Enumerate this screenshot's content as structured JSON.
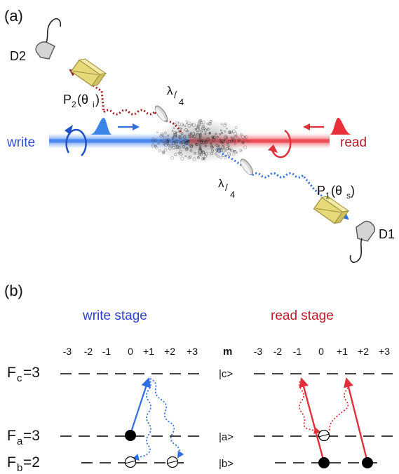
{
  "panel_a": {
    "label": "(a)",
    "write": "write",
    "read": "read",
    "detector1": "D1",
    "detector2": "D2",
    "polarizer1": "P",
    "polarizer1_sub": "1",
    "polarizer1_arg": "(θ",
    "polarizer1_arg_sub": "s",
    "polarizer1_close": ")",
    "polarizer2": "P",
    "polarizer2_sub": "2",
    "polarizer2_arg": "(θ",
    "polarizer2_arg_sub": "i",
    "polarizer2_close": ")",
    "waveplate_num": "λ",
    "waveplate_den": "4",
    "colors": {
      "write": "#2f6fe0",
      "read": "#e0313a",
      "dark_red": "#9a2020",
      "polarizer": "#e6d97a"
    }
  },
  "panel_b": {
    "label": "(b)",
    "write_stage": "write stage",
    "read_stage": "read stage",
    "m_label": "m",
    "m_values": [
      "-3",
      "-2",
      "-1",
      "0",
      "+1",
      "+2",
      "+3"
    ],
    "levels": {
      "c": {
        "F": "F",
        "sub": "c",
        "value": "=3",
        "ket": "|c>"
      },
      "a": {
        "F": "F",
        "sub": "a",
        "value": "=3",
        "ket": "|a>"
      },
      "b": {
        "F": "F",
        "sub": "b",
        "value": "=2",
        "ket": "|b>"
      }
    },
    "colors": {
      "write": "#2f6fe0",
      "read": "#e0313a"
    }
  }
}
